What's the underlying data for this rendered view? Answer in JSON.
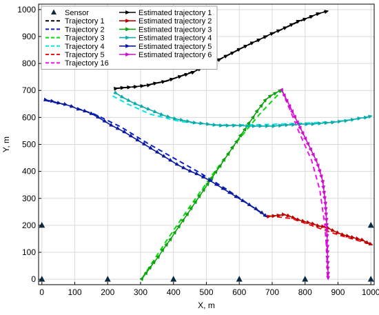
{
  "chart_data": {
    "type": "line",
    "xlabel": "X, m",
    "ylabel": "Y, m",
    "xlim": [
      -10,
      1010
    ],
    "ylim": [
      -20,
      1020
    ],
    "xticks": [
      0,
      100,
      200,
      300,
      400,
      500,
      600,
      700,
      800,
      900,
      1000
    ],
    "yticks": [
      0,
      100,
      200,
      300,
      400,
      500,
      600,
      700,
      800,
      900,
      1000
    ],
    "grid": true,
    "legend_position": "top-left",
    "legend_columns": [
      [
        "Sensor",
        "Trajectory 1",
        "Trajectory 2",
        "Trajectory 3",
        "Trajectory 4",
        "Trajectory 5",
        "Trajectory 16"
      ],
      [
        "Estimated trajectory 1",
        "Estimated trajectory 2",
        "Estimated trajectory 3",
        "Estimated trajectory 4",
        "Estimated trajectory 5",
        "Estimated trajectory 6"
      ]
    ],
    "sensors": {
      "name": "Sensor",
      "color": "#0b2a40",
      "points": [
        [
          0,
          0
        ],
        [
          200,
          0
        ],
        [
          400,
          0
        ],
        [
          600,
          0
        ],
        [
          800,
          0
        ],
        [
          1000,
          0
        ],
        [
          0,
          200
        ],
        [
          1000,
          200
        ]
      ]
    },
    "series": [
      {
        "name": "Trajectory 1",
        "style": "dashed",
        "color": "#000000",
        "points": [
          [
            225,
            708
          ],
          [
            300,
            715
          ],
          [
            380,
            735
          ],
          [
            460,
            770
          ],
          [
            540,
            815
          ],
          [
            620,
            865
          ],
          [
            700,
            910
          ],
          [
            780,
            955
          ],
          [
            860,
            993
          ]
        ]
      },
      {
        "name": "Trajectory 2",
        "style": "dashed",
        "color": "#0a1ecc",
        "points": [
          [
            10,
            663
          ],
          [
            80,
            645
          ],
          [
            160,
            612
          ],
          [
            240,
            565
          ],
          [
            320,
            505
          ],
          [
            400,
            450
          ],
          [
            480,
            395
          ],
          [
            560,
            335
          ],
          [
            620,
            285
          ],
          [
            680,
            235
          ]
        ]
      },
      {
        "name": "Trajectory 3",
        "style": "dashed",
        "color": "#00dd00",
        "points": [
          [
            305,
            5
          ],
          [
            380,
            145
          ],
          [
            450,
            270
          ],
          [
            520,
            390
          ],
          [
            590,
            505
          ],
          [
            660,
            610
          ],
          [
            730,
            700
          ]
        ]
      },
      {
        "name": "Trajectory 4",
        "style": "dashed",
        "color": "#00e5e5",
        "points": [
          [
            215,
            680
          ],
          [
            260,
            650
          ],
          [
            330,
            612
          ],
          [
            420,
            585
          ],
          [
            520,
            572
          ],
          [
            620,
            572
          ],
          [
            720,
            575
          ],
          [
            820,
            580
          ],
          [
            900,
            585
          ],
          [
            990,
            600
          ]
        ]
      },
      {
        "name": "Trajectory 5",
        "style": "dashed",
        "color": "#ee1111",
        "points": [
          [
            690,
            235
          ],
          [
            760,
            225
          ],
          [
            830,
            195
          ],
          [
            900,
            165
          ],
          [
            1000,
            130
          ]
        ]
      },
      {
        "name": "Trajectory 16",
        "style": "dashed",
        "color": "#ee11ee",
        "points": [
          [
            730,
            700
          ],
          [
            780,
            550
          ],
          [
            820,
            440
          ],
          [
            845,
            330
          ],
          [
            860,
            200
          ],
          [
            866,
            100
          ],
          [
            868,
            10
          ]
        ]
      },
      {
        "name": "Estimated trajectory 1",
        "style": "solid-markers",
        "color": "#000000",
        "points": [
          [
            225,
            707
          ],
          [
            245,
            710
          ],
          [
            265,
            712
          ],
          [
            285,
            714
          ],
          [
            305,
            717
          ],
          [
            325,
            720
          ],
          [
            345,
            727
          ],
          [
            370,
            733
          ],
          [
            395,
            742
          ],
          [
            420,
            752
          ],
          [
            440,
            760
          ],
          [
            460,
            768
          ],
          [
            480,
            780
          ],
          [
            500,
            790
          ],
          [
            520,
            803
          ],
          [
            540,
            815
          ],
          [
            560,
            828
          ],
          [
            580,
            840
          ],
          [
            600,
            853
          ],
          [
            620,
            865
          ],
          [
            640,
            877
          ],
          [
            660,
            888
          ],
          [
            680,
            900
          ],
          [
            700,
            912
          ],
          [
            720,
            922
          ],
          [
            740,
            933
          ],
          [
            760,
            945
          ],
          [
            780,
            957
          ],
          [
            800,
            965
          ],
          [
            820,
            975
          ],
          [
            840,
            985
          ],
          [
            865,
            993
          ]
        ]
      },
      {
        "name": "Estimated trajectory 2",
        "style": "solid-markers",
        "color": "#bb0000",
        "points": [
          [
            690,
            233
          ],
          [
            705,
            235
          ],
          [
            720,
            237
          ],
          [
            735,
            240
          ],
          [
            750,
            235
          ],
          [
            765,
            228
          ],
          [
            780,
            220
          ],
          [
            795,
            215
          ],
          [
            810,
            210
          ],
          [
            825,
            205
          ],
          [
            840,
            198
          ],
          [
            855,
            195
          ],
          [
            870,
            190
          ],
          [
            885,
            180
          ],
          [
            900,
            172
          ],
          [
            915,
            165
          ],
          [
            930,
            160
          ],
          [
            945,
            155
          ],
          [
            960,
            150
          ],
          [
            975,
            145
          ],
          [
            990,
            135
          ],
          [
            1000,
            130
          ]
        ]
      },
      {
        "name": "Estimated trajectory 3",
        "style": "solid-markers",
        "color": "#11a011",
        "points": [
          [
            305,
            3
          ],
          [
            318,
            25
          ],
          [
            330,
            45
          ],
          [
            342,
            65
          ],
          [
            355,
            85
          ],
          [
            368,
            110
          ],
          [
            380,
            130
          ],
          [
            392,
            150
          ],
          [
            405,
            175
          ],
          [
            418,
            198
          ],
          [
            430,
            220
          ],
          [
            443,
            243
          ],
          [
            455,
            265
          ],
          [
            468,
            288
          ],
          [
            480,
            310
          ],
          [
            493,
            333
          ],
          [
            505,
            355
          ],
          [
            518,
            378
          ],
          [
            530,
            400
          ],
          [
            543,
            422
          ],
          [
            555,
            445
          ],
          [
            568,
            467
          ],
          [
            580,
            490
          ],
          [
            593,
            512
          ],
          [
            605,
            535
          ],
          [
            618,
            557
          ],
          [
            630,
            580
          ],
          [
            643,
            602
          ],
          [
            655,
            625
          ],
          [
            668,
            645
          ],
          [
            680,
            665
          ],
          [
            695,
            680
          ],
          [
            710,
            690
          ],
          [
            725,
            700
          ]
        ]
      },
      {
        "name": "Estimated trajectory 4",
        "style": "solid-markers",
        "color": "#0eaaaa",
        "points": [
          [
            225,
            690
          ],
          [
            245,
            675
          ],
          [
            265,
            662
          ],
          [
            285,
            650
          ],
          [
            305,
            640
          ],
          [
            325,
            630
          ],
          [
            345,
            620
          ],
          [
            365,
            610
          ],
          [
            385,
            602
          ],
          [
            405,
            595
          ],
          [
            425,
            590
          ],
          [
            445,
            585
          ],
          [
            465,
            580
          ],
          [
            485,
            578
          ],
          [
            505,
            575
          ],
          [
            525,
            572
          ],
          [
            545,
            570
          ],
          [
            565,
            570
          ],
          [
            585,
            570
          ],
          [
            605,
            570
          ],
          [
            625,
            568
          ],
          [
            645,
            568
          ],
          [
            665,
            568
          ],
          [
            685,
            568
          ],
          [
            705,
            568
          ],
          [
            725,
            570
          ],
          [
            745,
            572
          ],
          [
            765,
            573
          ],
          [
            785,
            575
          ],
          [
            805,
            575
          ],
          [
            825,
            576
          ],
          [
            845,
            578
          ],
          [
            865,
            580
          ],
          [
            885,
            582
          ],
          [
            905,
            585
          ],
          [
            925,
            588
          ],
          [
            945,
            592
          ],
          [
            965,
            597
          ],
          [
            985,
            600
          ],
          [
            998,
            604
          ]
        ]
      },
      {
        "name": "Estimated trajectory 5",
        "style": "solid-markers",
        "color": "#0a1a9c",
        "points": [
          [
            12,
            665
          ],
          [
            32,
            660
          ],
          [
            52,
            653
          ],
          [
            72,
            648
          ],
          [
            92,
            640
          ],
          [
            112,
            630
          ],
          [
            132,
            623
          ],
          [
            152,
            613
          ],
          [
            172,
            600
          ],
          [
            192,
            585
          ],
          [
            212,
            570
          ],
          [
            232,
            558
          ],
          [
            252,
            545
          ],
          [
            272,
            530
          ],
          [
            292,
            515
          ],
          [
            312,
            500
          ],
          [
            332,
            485
          ],
          [
            352,
            470
          ],
          [
            372,
            455
          ],
          [
            392,
            440
          ],
          [
            412,
            425
          ],
          [
            432,
            412
          ],
          [
            452,
            400
          ],
          [
            472,
            390
          ],
          [
            492,
            378
          ],
          [
            512,
            365
          ],
          [
            532,
            350
          ],
          [
            552,
            335
          ],
          [
            572,
            320
          ],
          [
            592,
            305
          ],
          [
            612,
            290
          ],
          [
            632,
            275
          ],
          [
            652,
            260
          ],
          [
            670,
            245
          ],
          [
            680,
            235
          ]
        ]
      },
      {
        "name": "Estimated trajectory 6",
        "style": "solid-markers",
        "color": "#cc11cc",
        "points": [
          [
            730,
            700
          ],
          [
            738,
            680
          ],
          [
            746,
            660
          ],
          [
            754,
            640
          ],
          [
            762,
            620
          ],
          [
            770,
            600
          ],
          [
            778,
            580
          ],
          [
            786,
            560
          ],
          [
            794,
            540
          ],
          [
            802,
            520
          ],
          [
            810,
            500
          ],
          [
            818,
            480
          ],
          [
            826,
            460
          ],
          [
            834,
            440
          ],
          [
            840,
            420
          ],
          [
            845,
            400
          ],
          [
            850,
            380
          ],
          [
            854,
            360
          ],
          [
            856,
            340
          ],
          [
            858,
            320
          ],
          [
            860,
            300
          ],
          [
            862,
            280
          ],
          [
            863,
            260
          ],
          [
            864,
            240
          ],
          [
            865,
            220
          ],
          [
            866,
            200
          ],
          [
            866,
            180
          ],
          [
            867,
            160
          ],
          [
            867,
            140
          ],
          [
            868,
            120
          ],
          [
            868,
            100
          ],
          [
            868,
            80
          ],
          [
            869,
            60
          ],
          [
            869,
            40
          ],
          [
            870,
            20
          ],
          [
            870,
            5
          ]
        ]
      }
    ]
  }
}
